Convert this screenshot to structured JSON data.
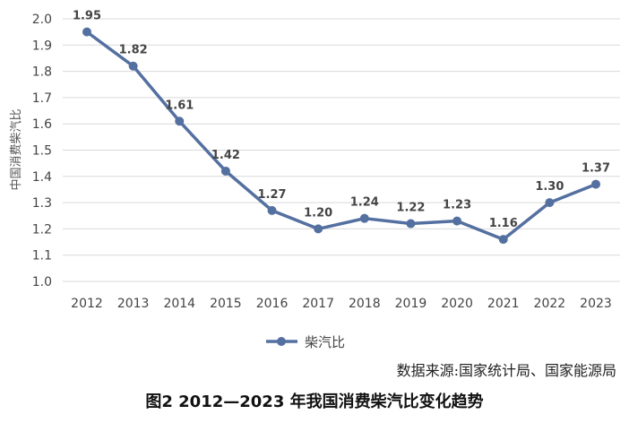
{
  "chart_data": {
    "type": "line",
    "title": "",
    "xlabel": "",
    "ylabel": "中国消费柴汽比",
    "categories": [
      "2012",
      "2013",
      "2014",
      "2015",
      "2016",
      "2017",
      "2018",
      "2019",
      "2020",
      "2021",
      "2022",
      "2023"
    ],
    "series": [
      {
        "name": "柴汽比",
        "values": [
          1.95,
          1.82,
          1.61,
          1.42,
          1.27,
          1.2,
          1.24,
          1.22,
          1.23,
          1.16,
          1.3,
          1.37
        ],
        "labels": [
          "1.95",
          "1.82",
          "1.61",
          "1.42",
          "1.27",
          "1.20",
          "1.24",
          "1.22",
          "1.23",
          "1.16",
          "1.30",
          "1.37"
        ]
      }
    ],
    "ylim": [
      1.0,
      2.0
    ],
    "yticks": [
      "1.0",
      "1.1",
      "1.2",
      "1.3",
      "1.4",
      "1.5",
      "1.6",
      "1.7",
      "1.8",
      "1.9",
      "2.0"
    ],
    "grid": "horizontal",
    "legend": "bottom-center",
    "line_color": "#5470a0"
  },
  "source_text": "数据来源:国家统计局、国家能源局",
  "caption": "图2  2012—2023 年我国消费柴汽比变化趋势"
}
